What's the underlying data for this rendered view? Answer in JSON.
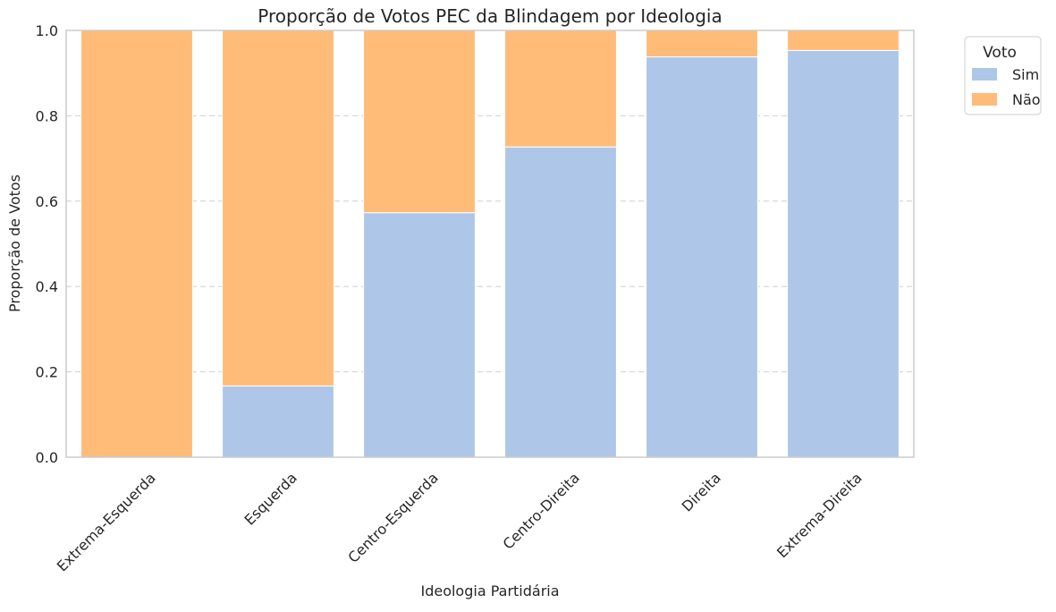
{
  "chart_data": {
    "type": "bar",
    "stacked": true,
    "title": "Proporção de Votos PEC da Blindagem por Ideologia",
    "xlabel": "Ideologia Partidária",
    "ylabel": "Proporção de Votos",
    "categories": [
      "Extrema-Esquerda",
      "Esquerda",
      "Centro-Esquerda",
      "Centro-Direita",
      "Direita",
      "Extrema-Direita"
    ],
    "series": [
      {
        "name": "Sim",
        "color": "#aec7e8",
        "values": [
          0.0,
          0.167,
          0.573,
          0.727,
          0.938,
          0.953
        ]
      },
      {
        "name": "Não",
        "color": "#ffbb78",
        "values": [
          1.0,
          0.833,
          0.427,
          0.273,
          0.062,
          0.047
        ]
      }
    ],
    "ylim": [
      0,
      1
    ],
    "yticks": [
      "0.0",
      "0.2",
      "0.4",
      "0.6",
      "0.8",
      "1.0"
    ],
    "grid": "horizontal-dashed",
    "legend": {
      "title": "Voto",
      "position": "right-outside-top"
    }
  }
}
